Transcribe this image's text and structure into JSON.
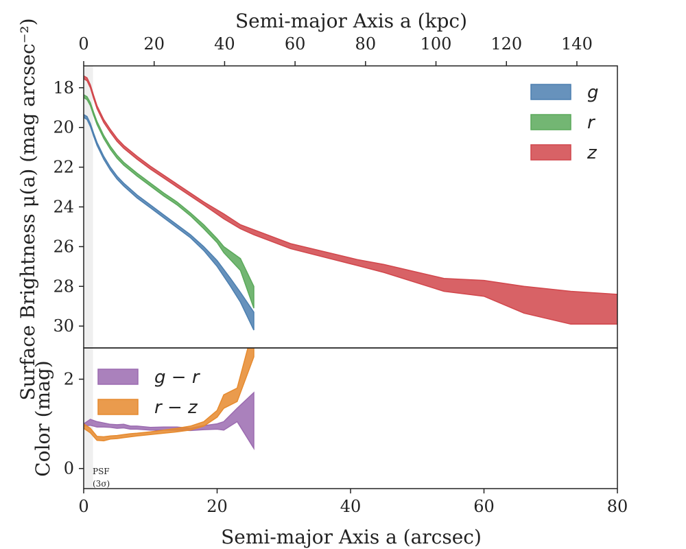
{
  "chart_data": [
    {
      "type": "area",
      "panel": "top",
      "xlabel": "Semi-major Axis a (arcsec)",
      "top_xlabel": "Semi-major Axis a (kpc)",
      "ylabel": "Surface Brightness μ(a) (mag arcsec⁻²)",
      "xlim": [
        0,
        80
      ],
      "ylim": [
        31.1,
        16.9
      ],
      "y_inverted": true,
      "y_ticks": [
        18,
        20,
        22,
        24,
        26,
        28,
        30
      ],
      "top_xlim": [
        0,
        151.5
      ],
      "top_x_ticks": [
        0,
        20,
        40,
        60,
        80,
        100,
        120,
        140
      ],
      "legend_position": "top-right",
      "series": [
        {
          "name": "g",
          "color": "#4c7fb0",
          "x": [
            0,
            0.5,
            1,
            1.5,
            2,
            3,
            4,
            5,
            6,
            8,
            10,
            12,
            14,
            16,
            18,
            20,
            22,
            23.5,
            25.5
          ],
          "lower": [
            19.35,
            19.45,
            19.8,
            20.3,
            20.75,
            21.45,
            22.0,
            22.45,
            22.8,
            23.4,
            23.9,
            24.4,
            24.9,
            25.4,
            26.0,
            26.7,
            27.6,
            28.3,
            29.3
          ],
          "upper": [
            19.5,
            19.6,
            19.95,
            20.45,
            20.9,
            21.6,
            22.15,
            22.6,
            22.95,
            23.55,
            24.05,
            24.55,
            25.05,
            25.55,
            26.2,
            27.0,
            28.0,
            28.8,
            30.2
          ]
        },
        {
          "name": "r",
          "color": "#5aa95a",
          "x": [
            0,
            0.5,
            1,
            1.5,
            2,
            3,
            4,
            5,
            6,
            8,
            10,
            12,
            14,
            16,
            18,
            20,
            21,
            23.5,
            25.5
          ],
          "lower": [
            18.35,
            18.45,
            18.75,
            19.25,
            19.7,
            20.4,
            20.95,
            21.4,
            21.75,
            22.3,
            22.8,
            23.3,
            23.75,
            24.3,
            24.9,
            25.6,
            26.0,
            26.6,
            28.0
          ],
          "upper": [
            18.5,
            18.6,
            18.9,
            19.4,
            19.85,
            20.55,
            21.1,
            21.55,
            21.9,
            22.45,
            22.95,
            23.45,
            23.9,
            24.45,
            25.1,
            25.8,
            26.3,
            27.2,
            29.1
          ]
        },
        {
          "name": "z",
          "color": "#d1464b",
          "x": [
            0,
            0.5,
            1,
            1.5,
            2,
            3,
            4,
            5,
            6,
            8,
            10,
            12,
            14,
            16,
            18,
            21,
            23.5,
            25.5,
            31,
            41,
            45,
            54,
            60,
            66,
            73,
            80
          ],
          "lower": [
            17.4,
            17.5,
            17.85,
            18.4,
            18.9,
            19.6,
            20.1,
            20.55,
            20.9,
            21.45,
            21.95,
            22.4,
            22.85,
            23.3,
            23.75,
            24.35,
            24.9,
            25.15,
            25.85,
            26.65,
            26.9,
            27.6,
            27.7,
            28.0,
            28.25,
            28.4
          ],
          "upper": [
            17.55,
            17.65,
            18.0,
            18.55,
            19.05,
            19.75,
            20.25,
            20.7,
            21.05,
            21.6,
            22.1,
            22.55,
            23.0,
            23.45,
            23.9,
            24.6,
            25.1,
            25.4,
            26.1,
            26.95,
            27.3,
            28.25,
            28.5,
            29.35,
            29.9,
            29.9
          ]
        }
      ]
    },
    {
      "type": "area",
      "panel": "bottom",
      "xlabel": "Semi-major Axis a (arcsec)",
      "ylabel": "Color (mag)",
      "xlim": [
        0,
        80
      ],
      "ylim": [
        -0.45,
        2.7
      ],
      "y_ticks": [
        0,
        2
      ],
      "x_ticks": [
        0,
        20,
        40,
        60,
        80
      ],
      "legend_position": "top-left",
      "annotation": [
        "PSF",
        "(3σ)"
      ],
      "psf_band": [
        0,
        1.4
      ],
      "series": [
        {
          "name": "g − r",
          "color": "#9b6bb0",
          "x": [
            0,
            1,
            2,
            3,
            4,
            5,
            6,
            7,
            8,
            10,
            12,
            14,
            16,
            18,
            20,
            21,
            23,
            25.5
          ],
          "lower": [
            0.95,
            0.97,
            0.93,
            0.93,
            0.92,
            0.9,
            0.91,
            0.88,
            0.88,
            0.86,
            0.86,
            0.86,
            0.85,
            0.87,
            0.88,
            0.86,
            1.05,
            0.45
          ],
          "upper": [
            1.0,
            1.1,
            1.05,
            1.02,
            0.99,
            0.98,
            0.99,
            0.95,
            0.95,
            0.92,
            0.93,
            0.93,
            0.9,
            0.96,
            1.0,
            1.05,
            1.35,
            1.7
          ]
        },
        {
          "name": "r − z",
          "color": "#e68a2e",
          "x": [
            0,
            1,
            2,
            3,
            4,
            5,
            6,
            7,
            8,
            10,
            12,
            14,
            16,
            18,
            20,
            21,
            23,
            25.5
          ],
          "lower": [
            0.9,
            0.8,
            0.63,
            0.62,
            0.66,
            0.67,
            0.69,
            0.71,
            0.73,
            0.76,
            0.79,
            0.82,
            0.86,
            0.95,
            1.15,
            1.35,
            1.5,
            2.5
          ],
          "upper": [
            1.0,
            0.9,
            0.72,
            0.71,
            0.73,
            0.74,
            0.76,
            0.78,
            0.79,
            0.82,
            0.86,
            0.9,
            0.95,
            1.05,
            1.3,
            1.65,
            1.8,
            3.2
          ]
        }
      ]
    }
  ]
}
